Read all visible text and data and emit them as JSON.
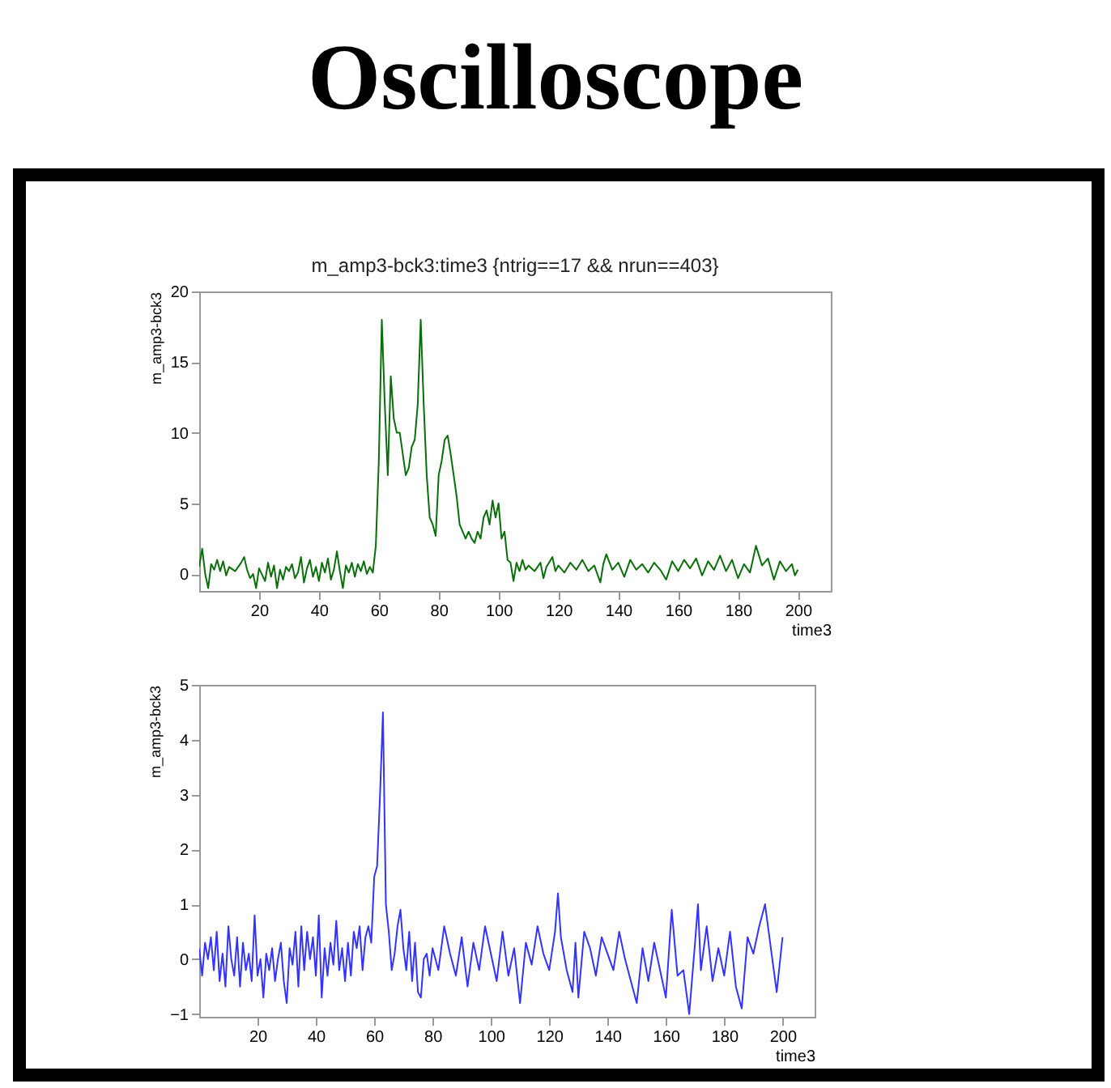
{
  "chart_data": [
    {
      "type": "line",
      "title": "Oscilloscope",
      "subtitle": "m_amp3-bck3:time3 {ntrig==17 && nrun==403}",
      "xlabel": "time3",
      "ylabel": "m_amp3-bck3",
      "xlim": [
        0,
        211
      ],
      "ylim": [
        -1.2,
        20
      ],
      "xticks": [
        20,
        40,
        60,
        80,
        100,
        120,
        140,
        160,
        180,
        200
      ],
      "yticks": [
        0,
        5,
        10,
        15,
        20
      ],
      "grid": false,
      "series": [
        {
          "color": "#0a6e0a",
          "x": [
            0,
            1,
            2,
            3,
            4,
            5,
            6,
            7,
            8,
            9,
            10,
            12,
            14,
            15,
            16,
            17,
            18,
            19,
            20,
            22,
            23,
            24,
            25,
            26,
            27,
            28,
            29,
            30,
            31,
            32,
            33,
            34,
            35,
            36,
            37,
            38,
            39,
            40,
            41,
            42,
            43,
            44,
            45,
            46,
            47,
            48,
            49,
            50,
            51,
            52,
            53,
            54,
            55,
            56,
            57,
            58,
            59,
            60,
            61,
            62,
            63,
            64,
            65,
            66,
            67,
            68,
            69,
            70,
            71,
            72,
            73,
            74,
            75,
            76,
            77,
            78,
            79,
            80,
            81,
            82,
            83,
            84,
            85,
            86,
            87,
            88,
            89,
            90,
            91,
            92,
            93,
            94,
            95,
            96,
            97,
            98,
            99,
            100,
            101,
            102,
            103,
            104,
            105,
            106,
            107,
            108,
            109,
            110,
            112,
            114,
            115,
            116,
            118,
            119,
            120,
            122,
            124,
            126,
            128,
            130,
            132,
            134,
            135,
            136,
            138,
            140,
            142,
            144,
            146,
            148,
            150,
            152,
            154,
            156,
            158,
            160,
            162,
            164,
            166,
            168,
            170,
            172,
            174,
            176,
            178,
            180,
            182,
            184,
            186,
            188,
            190,
            192,
            194,
            196,
            198,
            199,
            200
          ],
          "values": [
            0.5,
            1.8,
            0,
            -1,
            0.7,
            0.3,
            1,
            0.2,
            0.9,
            -0.1,
            0.5,
            0.2,
            0.8,
            1.2,
            0.3,
            -0.3,
            0,
            -1,
            0.4,
            -0.5,
            0.8,
            -0.2,
            0.6,
            -1,
            0.3,
            -0.4,
            0.5,
            0.2,
            0.7,
            -0.3,
            0.1,
            1.2,
            -0.6,
            0.4,
            1,
            -0.2,
            0.5,
            -0.5,
            0.8,
            0.1,
            1.1,
            -0.4,
            0.3,
            1.6,
            0.2,
            -1,
            0.6,
            0.1,
            0.8,
            -0.2,
            0.7,
            0.2,
            0.9,
            0,
            0.5,
            0.1,
            2,
            8,
            18,
            12,
            7,
            14,
            11,
            10,
            10,
            8.5,
            7,
            7.5,
            9,
            9.5,
            12,
            18,
            12,
            7,
            4,
            3.5,
            2.7,
            7,
            8,
            9.5,
            9.8,
            8.5,
            7,
            5.5,
            3.5,
            3,
            2.5,
            3,
            2.5,
            2.2,
            3,
            2.5,
            4,
            4.5,
            3.5,
            5.2,
            4,
            5,
            2.5,
            3,
            1,
            0.8,
            -0.5,
            0.8,
            0.2,
            1,
            0.3,
            0.6,
            0.2,
            0.8,
            -0.3,
            0.5,
            1.2,
            0.2,
            0.6,
            0.1,
            0.8,
            0.3,
            1,
            0.2,
            0.6,
            -0.6,
            0.7,
            1.4,
            0.3,
            0.8,
            -0.2,
            1,
            0.3,
            0.7,
            0.1,
            0.8,
            0.3,
            -0.4,
            0.9,
            0.2,
            1,
            0.4,
            1.1,
            -0.1,
            0.9,
            0.3,
            1.3,
            0.2,
            1,
            -0.3,
            0.7,
            0.1,
            2,
            0.6,
            1.1,
            -0.4,
            0.9,
            0.2,
            0.7,
            -0.1,
            0.3
          ]
        }
      ]
    },
    {
      "type": "line",
      "xlabel": "time3",
      "ylabel": "m_amp3-bck3",
      "xlim": [
        0,
        211
      ],
      "ylim": [
        -1.05,
        5
      ],
      "xticks": [
        20,
        40,
        60,
        80,
        100,
        120,
        140,
        160,
        180,
        200
      ],
      "yticks": [
        {
          "value": -1,
          "label": "−1"
        },
        0,
        1,
        2,
        3,
        4,
        5
      ],
      "grid": false,
      "series": [
        {
          "color": "#3333ff",
          "x": [
            0,
            1,
            2,
            3,
            4,
            5,
            6,
            7,
            8,
            9,
            10,
            11,
            12,
            13,
            14,
            15,
            16,
            17,
            18,
            19,
            20,
            21,
            22,
            23,
            24,
            25,
            26,
            27,
            28,
            29,
            30,
            31,
            32,
            33,
            34,
            35,
            36,
            37,
            38,
            39,
            40,
            41,
            42,
            43,
            44,
            45,
            46,
            47,
            48,
            49,
            50,
            51,
            52,
            53,
            54,
            55,
            56,
            57,
            58,
            59,
            60,
            61,
            62,
            63,
            64,
            65,
            66,
            67,
            68,
            69,
            70,
            71,
            72,
            73,
            74,
            75,
            76,
            77,
            78,
            79,
            80,
            82,
            84,
            86,
            88,
            90,
            92,
            94,
            96,
            98,
            100,
            102,
            104,
            106,
            108,
            110,
            112,
            114,
            116,
            118,
            120,
            122,
            123,
            124,
            126,
            128,
            129,
            130,
            132,
            134,
            136,
            138,
            140,
            142,
            144,
            146,
            148,
            150,
            152,
            154,
            156,
            158,
            160,
            162,
            164,
            166,
            168,
            170,
            171,
            172,
            174,
            176,
            178,
            180,
            182,
            184,
            186,
            188,
            190,
            192,
            194,
            196,
            198,
            200
          ],
          "values": [
            0.2,
            -0.3,
            0.3,
            0,
            0.4,
            -0.2,
            0.5,
            -0.4,
            0.1,
            -0.5,
            0.6,
            0,
            -0.3,
            0.4,
            -0.5,
            0.3,
            -0.2,
            0.1,
            -0.4,
            0.8,
            -0.3,
            0,
            -0.7,
            0.1,
            -0.2,
            0.2,
            -0.4,
            0,
            0.3,
            -0.4,
            -0.8,
            0.2,
            -0.1,
            0.5,
            -0.5,
            0.6,
            -0.2,
            0.5,
            0,
            0.4,
            -0.3,
            0.8,
            -0.7,
            0.2,
            -0.3,
            0.3,
            -0.1,
            0.7,
            -0.2,
            0.2,
            -0.4,
            0.3,
            -0.3,
            0.5,
            0.2,
            0.6,
            -0.2,
            0.4,
            0.6,
            0.3,
            1.5,
            1.7,
            3,
            4.5,
            1,
            0.5,
            -0.2,
            0.1,
            0.6,
            0.9,
            0.2,
            -0.2,
            0.5,
            -0.4,
            0.3,
            -0.6,
            -0.7,
            0,
            0.1,
            -0.3,
            0.2,
            -0.2,
            0.6,
            0.1,
            -0.3,
            0.4,
            -0.5,
            0.3,
            -0.2,
            0.6,
            0.1,
            -0.4,
            0.5,
            -0.3,
            0.2,
            -0.8,
            0.3,
            -0.1,
            0.6,
            0.1,
            -0.2,
            0.5,
            1.2,
            0.4,
            -0.2,
            -0.6,
            0.3,
            -0.7,
            0.5,
            0.2,
            -0.3,
            0.4,
            0.1,
            -0.2,
            0.5,
            0,
            -0.4,
            -0.8,
            0.2,
            -0.4,
            0.3,
            -0.2,
            -0.7,
            0.9,
            -0.3,
            -0.2,
            -1,
            0.3,
            1,
            -0.2,
            0.6,
            -0.4,
            0.2,
            -0.3,
            0.5,
            -0.5,
            -0.9,
            0.4,
            0.1,
            0.6,
            1,
            0.2,
            -0.6,
            0.4
          ]
        }
      ]
    }
  ]
}
